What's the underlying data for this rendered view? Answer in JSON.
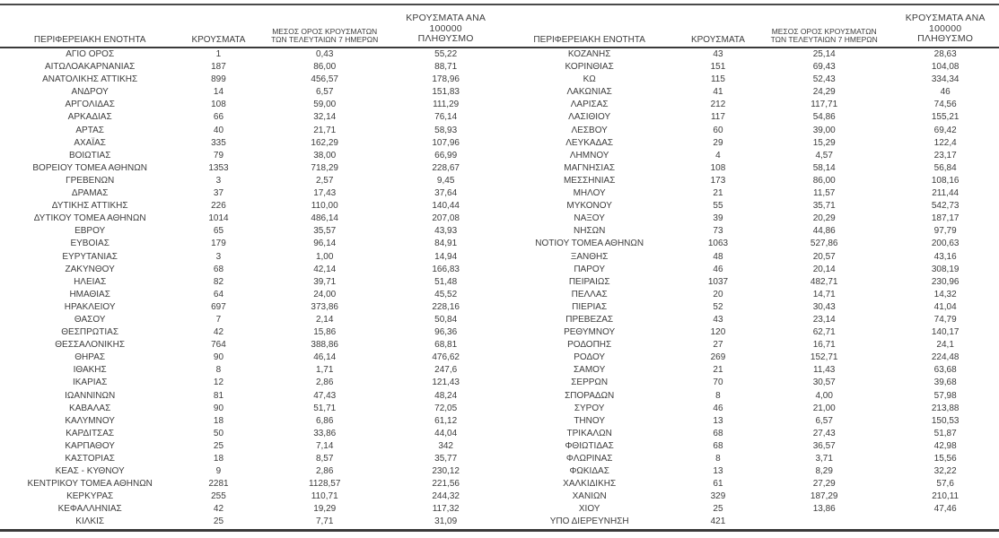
{
  "colors": {
    "text": "#3c3c3c",
    "rule": "#3a3a3a",
    "background": "#ffffff"
  },
  "table": {
    "headers": {
      "region": "ΠΕΡΙΦΕΡΕΙΑΚΗ ΕΝΟΤΗΤΑ",
      "cases": "ΚΡΟΥΣΜΑΤΑ",
      "avg7_line1": "ΜΕΣΟΣ ΟΡΟΣ ΚΡΟΥΣΜΑΤΩΝ",
      "avg7_line2": "ΤΩΝ ΤΕΛΕΥΤΑΙΩΝ 7 ΗΜΕΡΩΝ",
      "per100k_line1": "ΚΡΟΥΣΜΑΤΑ ΑΝΑ 100000",
      "per100k_line2": "ΠΛΗΘΥΣΜΟ"
    },
    "left_rows": [
      [
        "ΑΓΙΟ ΟΡΟΣ",
        "1",
        "0,43",
        "55,22"
      ],
      [
        "ΑΙΤΩΛΟΑΚΑΡΝΑΝΙΑΣ",
        "187",
        "86,00",
        "88,71"
      ],
      [
        "ΑΝΑΤΟΛΙΚΗΣ ΑΤΤΙΚΗΣ",
        "899",
        "456,57",
        "178,96"
      ],
      [
        "ΑΝΔΡΟΥ",
        "14",
        "6,57",
        "151,83"
      ],
      [
        "ΑΡΓΟΛΙΔΑΣ",
        "108",
        "59,00",
        "111,29"
      ],
      [
        "ΑΡΚΑΔΙΑΣ",
        "66",
        "32,14",
        "76,14"
      ],
      [
        "ΑΡΤΑΣ",
        "40",
        "21,71",
        "58,93"
      ],
      [
        "ΑΧΑΪΑΣ",
        "335",
        "162,29",
        "107,96"
      ],
      [
        "ΒΟΙΩΤΙΑΣ",
        "79",
        "38,00",
        "66,99"
      ],
      [
        "ΒΟΡΕΙΟΥ ΤΟΜΕΑ ΑΘΗΝΩΝ",
        "1353",
        "718,29",
        "228,67"
      ],
      [
        "ΓΡΕΒΕΝΩΝ",
        "3",
        "2,57",
        "9,45"
      ],
      [
        "ΔΡΑΜΑΣ",
        "37",
        "17,43",
        "37,64"
      ],
      [
        "ΔΥΤΙΚΗΣ ΑΤΤΙΚΗΣ",
        "226",
        "110,00",
        "140,44"
      ],
      [
        "ΔΥΤΙΚΟΥ ΤΟΜΕΑ ΑΘΗΝΩΝ",
        "1014",
        "486,14",
        "207,08"
      ],
      [
        "ΕΒΡΟΥ",
        "65",
        "35,57",
        "43,93"
      ],
      [
        "ΕΥΒΟΙΑΣ",
        "179",
        "96,14",
        "84,91"
      ],
      [
        "ΕΥΡΥΤΑΝΙΑΣ",
        "3",
        "1,00",
        "14,94"
      ],
      [
        "ΖΑΚΥΝΘΟΥ",
        "68",
        "42,14",
        "166,83"
      ],
      [
        "ΗΛΕΙΑΣ",
        "82",
        "39,71",
        "51,48"
      ],
      [
        "ΗΜΑΘΙΑΣ",
        "64",
        "24,00",
        "45,52"
      ],
      [
        "ΗΡΑΚΛΕΙΟΥ",
        "697",
        "373,86",
        "228,16"
      ],
      [
        "ΘΑΣΟΥ",
        "7",
        "2,14",
        "50,84"
      ],
      [
        "ΘΕΣΠΡΩΤΙΑΣ",
        "42",
        "15,86",
        "96,36"
      ],
      [
        "ΘΕΣΣΑΛΟΝΙΚΗΣ",
        "764",
        "388,86",
        "68,81"
      ],
      [
        "ΘΗΡΑΣ",
        "90",
        "46,14",
        "476,62"
      ],
      [
        "ΙΘΑΚΗΣ",
        "8",
        "1,71",
        "247,6"
      ],
      [
        "ΙΚΑΡΙΑΣ",
        "12",
        "2,86",
        "121,43"
      ],
      [
        "ΙΩΑΝΝΙΝΩΝ",
        "81",
        "47,43",
        "48,24"
      ],
      [
        "ΚΑΒΑΛΑΣ",
        "90",
        "51,71",
        "72,05"
      ],
      [
        "ΚΑΛΥΜΝΟΥ",
        "18",
        "6,86",
        "61,12"
      ],
      [
        "ΚΑΡΔΙΤΣΑΣ",
        "50",
        "33,86",
        "44,04"
      ],
      [
        "ΚΑΡΠΑΘΟΥ",
        "25",
        "7,14",
        "342"
      ],
      [
        "ΚΑΣΤΟΡΙΑΣ",
        "18",
        "8,57",
        "35,77"
      ],
      [
        "ΚΕΑΣ - ΚΥΘΝΟΥ",
        "9",
        "2,86",
        "230,12"
      ],
      [
        "ΚΕΝΤΡΙΚΟΥ ΤΟΜΕΑ ΑΘΗΝΩΝ",
        "2281",
        "1128,57",
        "221,56"
      ],
      [
        "ΚΕΡΚΥΡΑΣ",
        "255",
        "110,71",
        "244,32"
      ],
      [
        "ΚΕΦΑΛΛΗΝΙΑΣ",
        "42",
        "19,29",
        "117,32"
      ],
      [
        "ΚΙΛΚΙΣ",
        "25",
        "7,71",
        "31,09"
      ]
    ],
    "right_rows": [
      [
        "ΚΟΖΑΝΗΣ",
        "43",
        "25,14",
        "28,63"
      ],
      [
        "ΚΟΡΙΝΘΙΑΣ",
        "151",
        "69,43",
        "104,08"
      ],
      [
        "ΚΩ",
        "115",
        "52,43",
        "334,34"
      ],
      [
        "ΛΑΚΩΝΙΑΣ",
        "41",
        "24,29",
        "46"
      ],
      [
        "ΛΑΡΙΣΑΣ",
        "212",
        "117,71",
        "74,56"
      ],
      [
        "ΛΑΣΙΘΙΟΥ",
        "117",
        "54,86",
        "155,21"
      ],
      [
        "ΛΕΣΒΟΥ",
        "60",
        "39,00",
        "69,42"
      ],
      [
        "ΛΕΥΚΑΔΑΣ",
        "29",
        "15,29",
        "122,4"
      ],
      [
        "ΛΗΜΝΟΥ",
        "4",
        "4,57",
        "23,17"
      ],
      [
        "ΜΑΓΝΗΣΙΑΣ",
        "108",
        "58,14",
        "56,84"
      ],
      [
        "ΜΕΣΣΗΝΙΑΣ",
        "173",
        "86,00",
        "108,16"
      ],
      [
        "ΜΗΛΟΥ",
        "21",
        "11,57",
        "211,44"
      ],
      [
        "ΜΥΚΟΝΟΥ",
        "55",
        "35,71",
        "542,73"
      ],
      [
        "ΝΑΞΟΥ",
        "39",
        "20,29",
        "187,17"
      ],
      [
        "ΝΗΣΩΝ",
        "73",
        "44,86",
        "97,79"
      ],
      [
        "ΝΟΤΙΟΥ ΤΟΜΕΑ ΑΘΗΝΩΝ",
        "1063",
        "527,86",
        "200,63"
      ],
      [
        "ΞΑΝΘΗΣ",
        "48",
        "20,57",
        "43,16"
      ],
      [
        "ΠΑΡΟΥ",
        "46",
        "20,14",
        "308,19"
      ],
      [
        "ΠΕΙΡΑΙΩΣ",
        "1037",
        "482,71",
        "230,96"
      ],
      [
        "ΠΕΛΛΑΣ",
        "20",
        "14,71",
        "14,32"
      ],
      [
        "ΠΙΕΡΙΑΣ",
        "52",
        "30,43",
        "41,04"
      ],
      [
        "ΠΡΕΒΕΖΑΣ",
        "43",
        "23,14",
        "74,79"
      ],
      [
        "ΡΕΘΥΜΝΟΥ",
        "120",
        "62,71",
        "140,17"
      ],
      [
        "ΡΟΔΟΠΗΣ",
        "27",
        "16,71",
        "24,1"
      ],
      [
        "ΡΟΔΟΥ",
        "269",
        "152,71",
        "224,48"
      ],
      [
        "ΣΑΜΟΥ",
        "21",
        "11,43",
        "63,68"
      ],
      [
        "ΣΕΡΡΩΝ",
        "70",
        "30,57",
        "39,68"
      ],
      [
        "ΣΠΟΡΑΔΩΝ",
        "8",
        "4,00",
        "57,98"
      ],
      [
        "ΣΥΡΟΥ",
        "46",
        "21,00",
        "213,88"
      ],
      [
        "ΤΗΝΟΥ",
        "13",
        "6,57",
        "150,53"
      ],
      [
        "ΤΡΙΚΑΛΩΝ",
        "68",
        "27,43",
        "51,87"
      ],
      [
        "ΦΘΙΩΤΙΔΑΣ",
        "68",
        "36,57",
        "42,98"
      ],
      [
        "ΦΛΩΡΙΝΑΣ",
        "8",
        "3,71",
        "15,56"
      ],
      [
        "ΦΩΚΙΔΑΣ",
        "13",
        "8,29",
        "32,22"
      ],
      [
        "ΧΑΛΚΙΔΙΚΗΣ",
        "61",
        "27,29",
        "57,6"
      ],
      [
        "ΧΑΝΙΩΝ",
        "329",
        "187,29",
        "210,11"
      ],
      [
        "ΧΙΟΥ",
        "25",
        "13,86",
        "47,46"
      ],
      [
        "ΥΠΟ ΔΙΕΡΕΥΝΗΣΗ",
        "421",
        "",
        ""
      ]
    ]
  }
}
